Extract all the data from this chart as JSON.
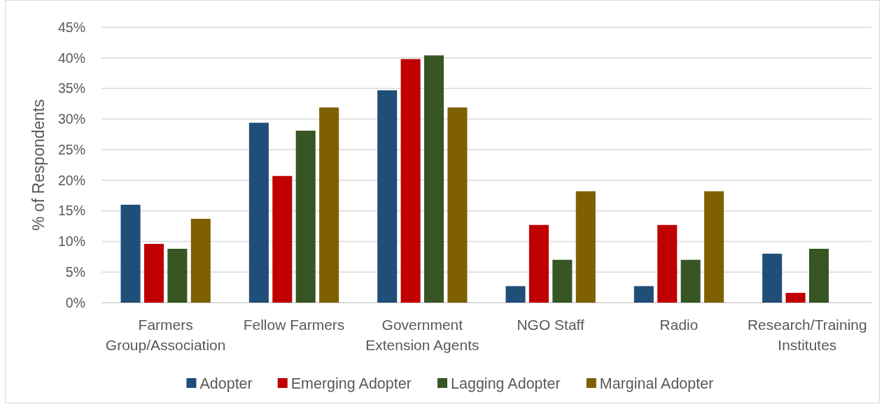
{
  "chart_data": {
    "type": "bar",
    "ylabel": "% of Respondents",
    "categories": [
      "Farmers Group/Association",
      "Fellow Farmers",
      "Government Extension Agents",
      "NGO Staff",
      "Radio",
      "Research/Training Institutes"
    ],
    "series": [
      {
        "name": "Adopter",
        "color": "#1f4e79",
        "values": [
          16.0,
          29.4,
          34.7,
          2.7,
          2.7,
          8.0
        ]
      },
      {
        "name": "Emerging Adopter",
        "color": "#c00000",
        "values": [
          9.6,
          20.7,
          39.8,
          12.7,
          12.7,
          1.6
        ]
      },
      {
        "name": "Lagging Adopter",
        "color": "#375623",
        "values": [
          8.8,
          28.1,
          40.4,
          7.0,
          7.0,
          8.8
        ]
      },
      {
        "name": "Marginal Adopter",
        "color": "#7f6000",
        "values": [
          13.7,
          31.9,
          31.9,
          18.2,
          18.2,
          null
        ]
      }
    ],
    "ylim": [
      0,
      45
    ],
    "yticks": [
      {
        "value": 0,
        "label": "0%"
      },
      {
        "value": 5,
        "label": "5%"
      },
      {
        "value": 10,
        "label": "10%"
      },
      {
        "value": 15,
        "label": "15%"
      },
      {
        "value": 20,
        "label": "20%"
      },
      {
        "value": 25,
        "label": "25%"
      },
      {
        "value": 30,
        "label": "30%"
      },
      {
        "value": 35,
        "label": "35%"
      },
      {
        "value": 40,
        "label": "40%"
      },
      {
        "value": 45,
        "label": "45%"
      }
    ],
    "grid": "y",
    "legend": "bottom"
  }
}
